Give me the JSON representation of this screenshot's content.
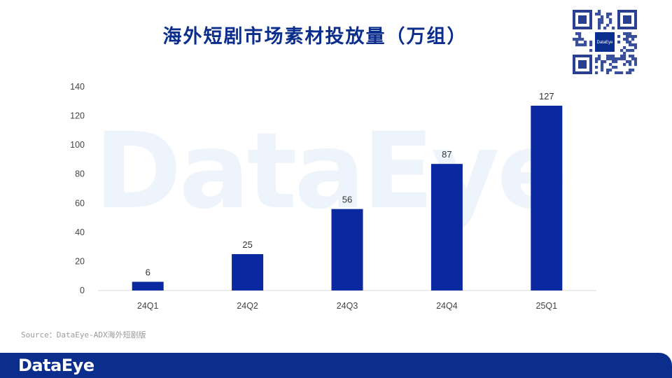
{
  "title": "海外短剧市场素材投放量（万组）",
  "source": "Source：DataEye-ADX海外短剧版",
  "watermark": "DataEye",
  "footer_logo": "DataEye",
  "qr_label": "DataEye",
  "colors": {
    "accent": "#0b2d8c",
    "bar": "#0a28a0"
  },
  "chart_data": {
    "type": "bar",
    "title": "海外短剧市场素材投放量（万组）",
    "categories": [
      "24Q1",
      "24Q2",
      "24Q3",
      "24Q4",
      "25Q1"
    ],
    "values": [
      6,
      25,
      56,
      87,
      127
    ],
    "ylim": [
      0,
      140
    ],
    "yticks": [
      0,
      20,
      40,
      60,
      80,
      100,
      120,
      140
    ],
    "xlabel": "",
    "ylabel": "",
    "grid": false,
    "data_labels": true
  }
}
